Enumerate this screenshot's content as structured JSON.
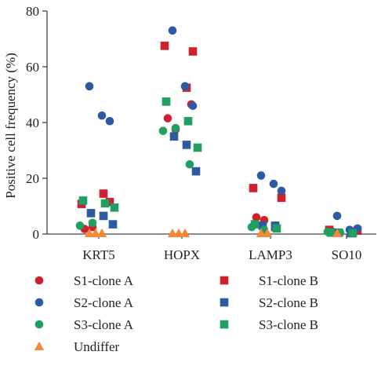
{
  "colors": {
    "red": "#d0202e",
    "blue": "#2d5ba3",
    "green": "#20a060",
    "orange": "#f6883a",
    "axis": "#444444"
  },
  "chart_data": {
    "type": "scatter",
    "title": "",
    "xlabel": "",
    "ylabel": "Positive cell frequency (%)",
    "ylim": [
      0,
      80
    ],
    "yticks": [
      0,
      20,
      40,
      60,
      80
    ],
    "categories": [
      "KRT5",
      "HOPX",
      "LAMP3",
      "SO10"
    ],
    "legend_position": "bottom",
    "series": [
      {
        "name": "S1-clone A",
        "marker": "circle",
        "color": "#d0202e",
        "points": [
          {
            "category": "KRT5",
            "y": 1.8
          },
          {
            "category": "KRT5",
            "y": 2.5
          },
          {
            "category": "HOPX",
            "y": 41.5
          },
          {
            "category": "HOPX",
            "y": 37.5
          },
          {
            "category": "HOPX",
            "y": 46.5
          },
          {
            "category": "LAMP3",
            "y": 6.0
          },
          {
            "category": "LAMP3",
            "y": 5.0
          },
          {
            "category": "SO10",
            "y": 0.8
          }
        ]
      },
      {
        "name": "S1-clone B",
        "marker": "square",
        "color": "#d0202e",
        "points": [
          {
            "category": "KRT5",
            "y": 10.8
          },
          {
            "category": "KRT5",
            "y": 11.5
          },
          {
            "category": "KRT5",
            "y": 14.5
          },
          {
            "category": "HOPX",
            "y": 67.5
          },
          {
            "category": "HOPX",
            "y": 65.5
          },
          {
            "category": "HOPX",
            "y": 52.5
          },
          {
            "category": "LAMP3",
            "y": 16.5
          },
          {
            "category": "LAMP3",
            "y": 13.0
          },
          {
            "category": "LAMP3",
            "y": 2.5
          },
          {
            "category": "SO10",
            "y": 1.5
          },
          {
            "category": "SO10",
            "y": 1.2
          }
        ]
      },
      {
        "name": "S2-clone A",
        "marker": "circle",
        "color": "#2d5ba3",
        "points": [
          {
            "category": "KRT5",
            "y": 53.0
          },
          {
            "category": "KRT5",
            "y": 42.5
          },
          {
            "category": "KRT5",
            "y": 40.5
          },
          {
            "category": "HOPX",
            "y": 73.0
          },
          {
            "category": "HOPX",
            "y": 53.0
          },
          {
            "category": "HOPX",
            "y": 46.0
          },
          {
            "category": "LAMP3",
            "y": 21.0
          },
          {
            "category": "LAMP3",
            "y": 18.0
          },
          {
            "category": "LAMP3",
            "y": 15.5
          },
          {
            "category": "SO10",
            "y": 6.5
          },
          {
            "category": "SO10",
            "y": 1.5
          },
          {
            "category": "SO10",
            "y": 2.0
          }
        ]
      },
      {
        "name": "S2-clone B",
        "marker": "square",
        "color": "#2d5ba3",
        "points": [
          {
            "category": "KRT5",
            "y": 7.5
          },
          {
            "category": "KRT5",
            "y": 6.5
          },
          {
            "category": "KRT5",
            "y": 3.5
          },
          {
            "category": "HOPX",
            "y": 35.0
          },
          {
            "category": "HOPX",
            "y": 32.0
          },
          {
            "category": "HOPX",
            "y": 22.5
          },
          {
            "category": "LAMP3",
            "y": 3.0
          },
          {
            "category": "LAMP3",
            "y": 3.0
          },
          {
            "category": "SO10",
            "y": 0.5
          },
          {
            "category": "SO10",
            "y": 0.3
          }
        ]
      },
      {
        "name": "S3-clone A",
        "marker": "circle",
        "color": "#20a060",
        "points": [
          {
            "category": "KRT5",
            "y": 3.0
          },
          {
            "category": "KRT5",
            "y": 4.0
          },
          {
            "category": "HOPX",
            "y": 37.0
          },
          {
            "category": "HOPX",
            "y": 38.0
          },
          {
            "category": "HOPX",
            "y": 25.0
          },
          {
            "category": "LAMP3",
            "y": 2.5
          },
          {
            "category": "LAMP3",
            "y": 1.5
          },
          {
            "category": "SO10",
            "y": 0.8
          },
          {
            "category": "SO10",
            "y": 0.5
          }
        ]
      },
      {
        "name": "S3-clone B",
        "marker": "square",
        "color": "#20a060",
        "points": [
          {
            "category": "KRT5",
            "y": 12.0
          },
          {
            "category": "KRT5",
            "y": 11.0
          },
          {
            "category": "KRT5",
            "y": 9.5
          },
          {
            "category": "HOPX",
            "y": 47.5
          },
          {
            "category": "HOPX",
            "y": 40.5
          },
          {
            "category": "HOPX",
            "y": 31.0
          },
          {
            "category": "LAMP3",
            "y": 3.5
          },
          {
            "category": "LAMP3",
            "y": 2.0
          },
          {
            "category": "SO10",
            "y": 0.5
          },
          {
            "category": "SO10",
            "y": 0.3
          }
        ]
      },
      {
        "name": "Undiffer",
        "marker": "triangle",
        "color": "#f6883a",
        "points": [
          {
            "category": "KRT5",
            "y": 0
          },
          {
            "category": "KRT5",
            "y": 0
          },
          {
            "category": "KRT5",
            "y": 0
          },
          {
            "category": "HOPX",
            "y": 0
          },
          {
            "category": "HOPX",
            "y": 0
          },
          {
            "category": "HOPX",
            "y": 0
          },
          {
            "category": "LAMP3",
            "y": 0
          },
          {
            "category": "LAMP3",
            "y": 0
          },
          {
            "category": "SO10",
            "y": 0
          }
        ]
      }
    ]
  }
}
